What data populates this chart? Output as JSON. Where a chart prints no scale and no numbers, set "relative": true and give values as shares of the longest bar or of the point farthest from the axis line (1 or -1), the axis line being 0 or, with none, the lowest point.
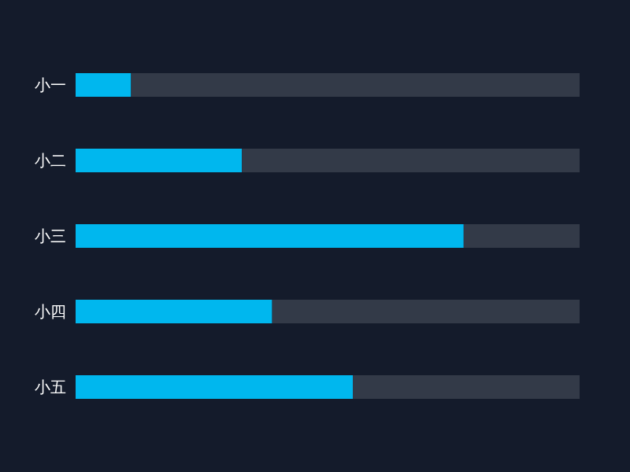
{
  "chart_data": {
    "type": "bar",
    "orientation": "horizontal",
    "relative": true,
    "stacked": true,
    "categories": [
      "小一",
      "小二",
      "小三",
      "小四",
      "小五"
    ],
    "series": [
      {
        "color": "#00b7ee",
        "values": [
          0.11,
          0.33,
          0.77,
          0.39,
          0.55
        ]
      },
      {
        "color": "#333a48",
        "values": [
          0.89,
          0.67,
          0.23,
          0.61,
          0.45
        ]
      }
    ]
  }
}
